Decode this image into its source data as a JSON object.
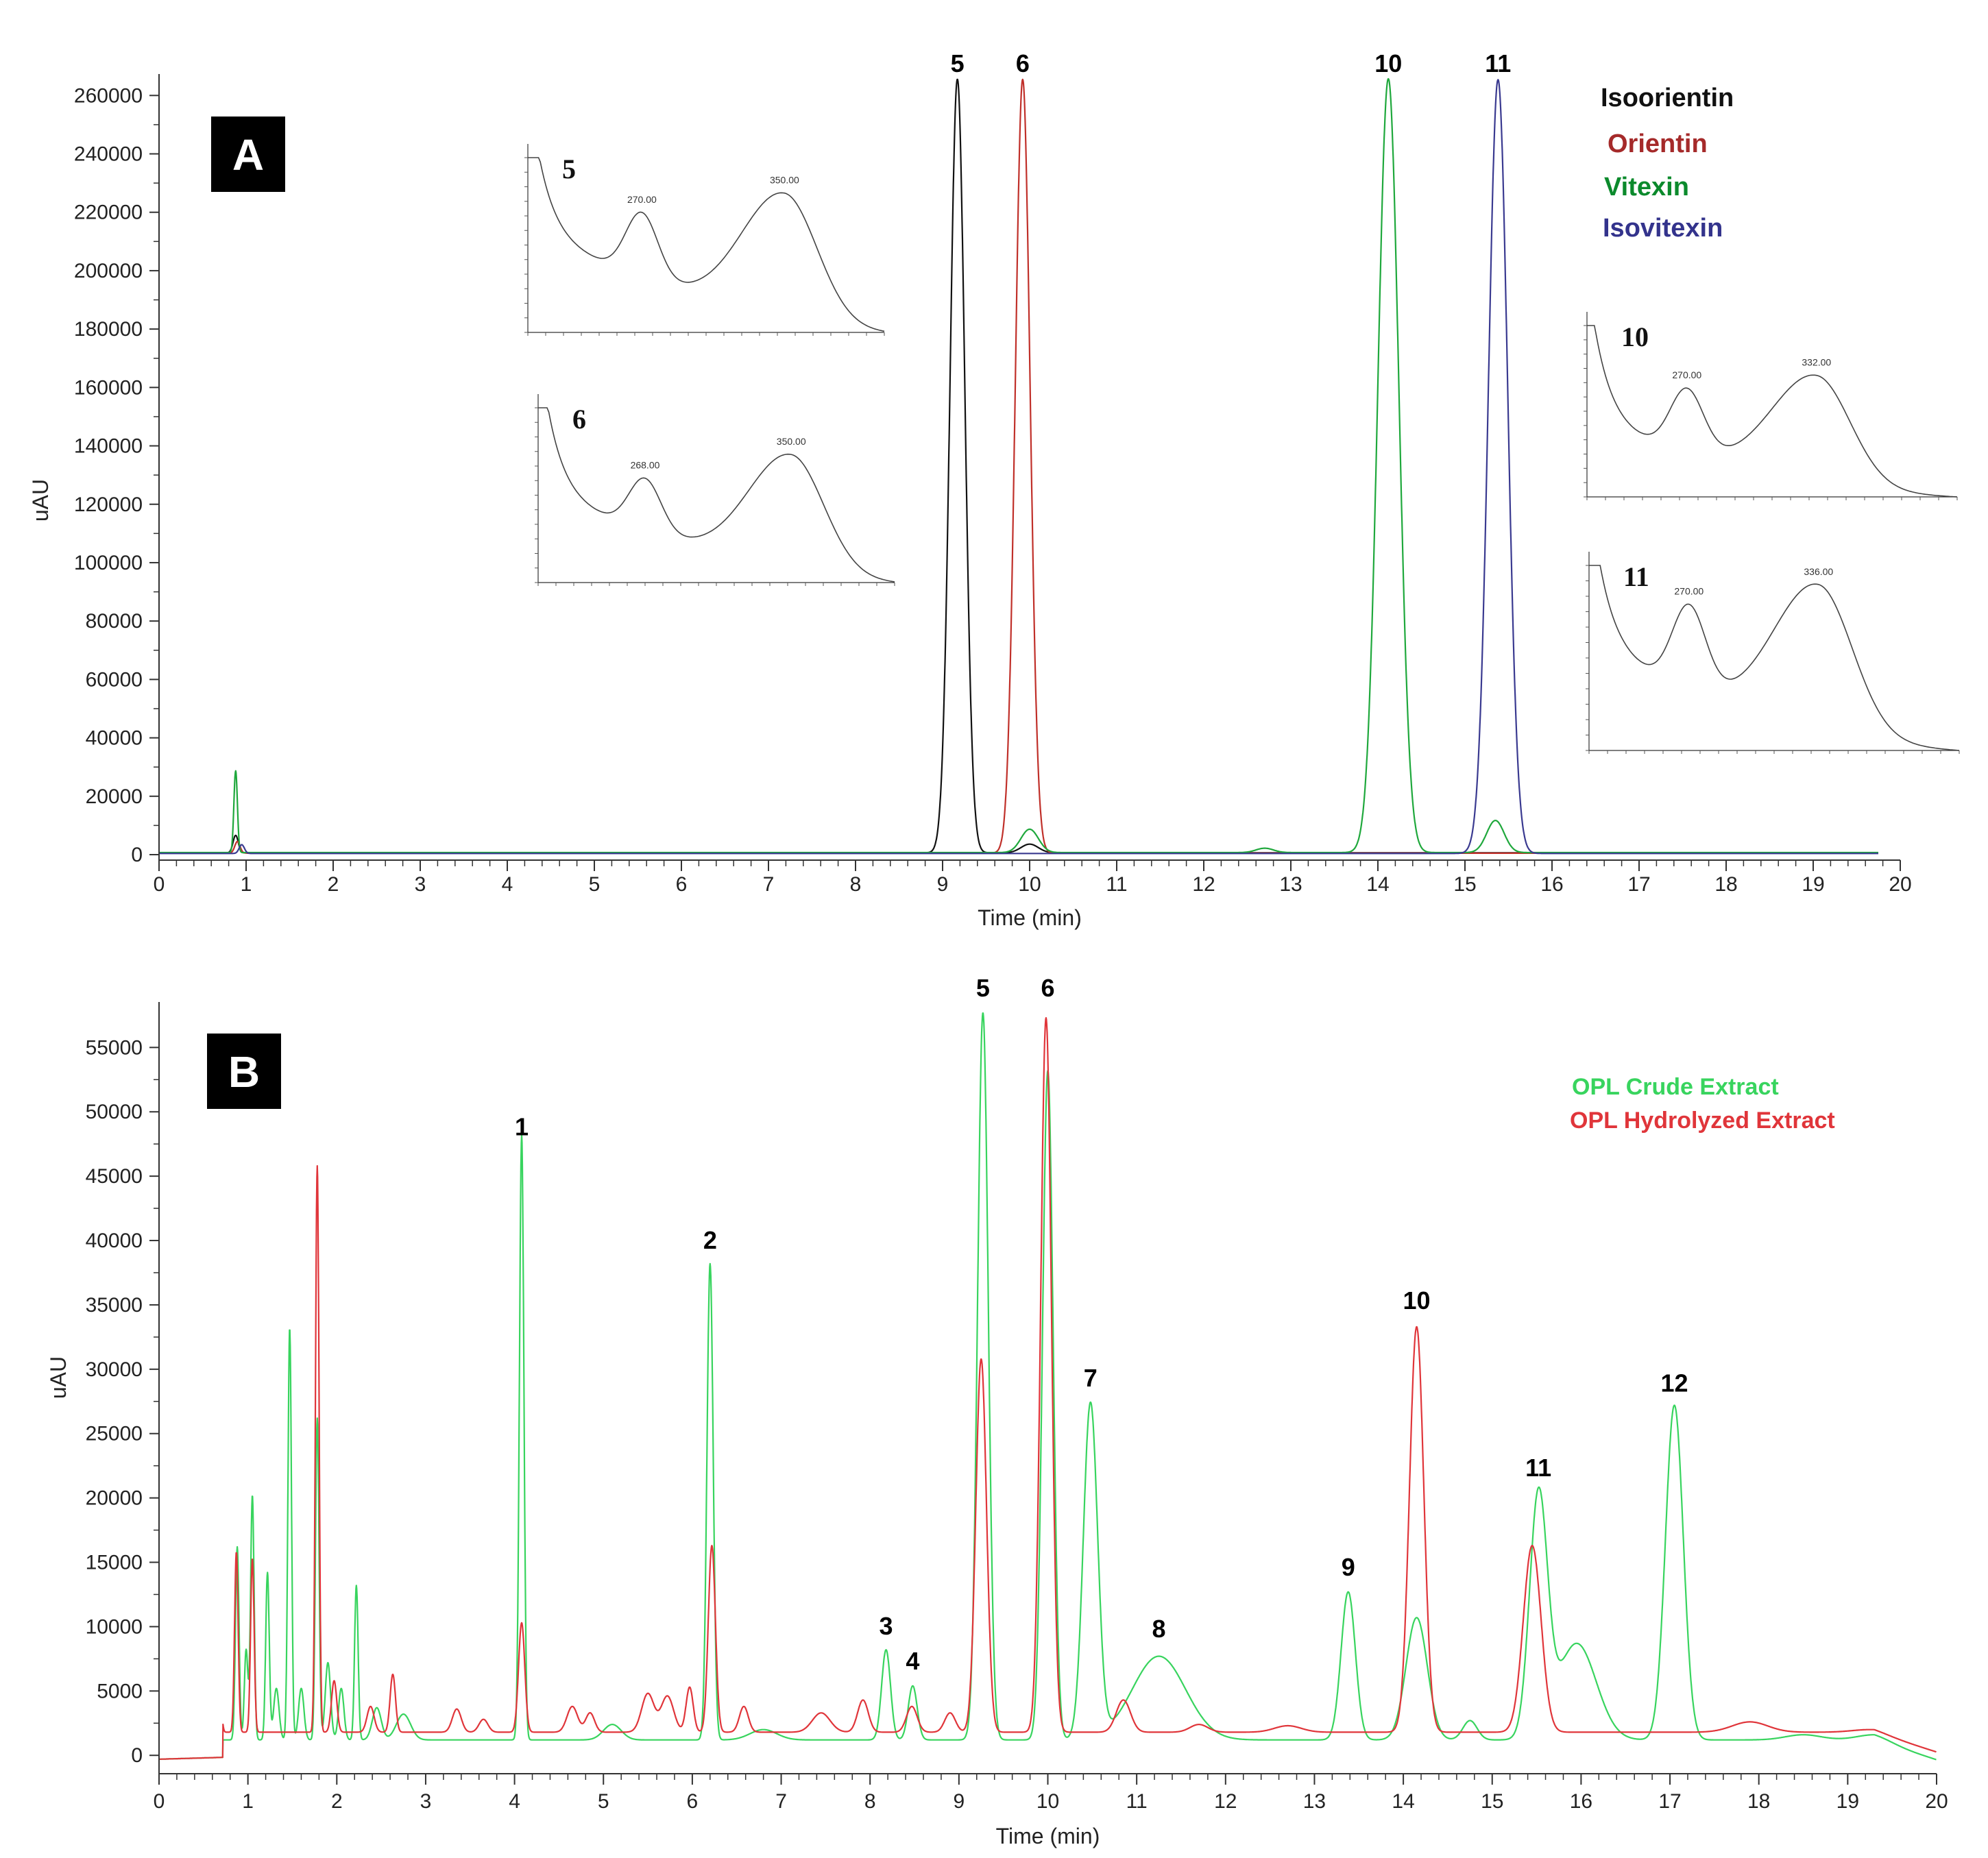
{
  "colors": {
    "isoorientin": "#111111",
    "orientin": "#c0302a",
    "vitexin": "#1fa83c",
    "isovitexin": "#3a3a90",
    "crude": "#38d45e",
    "hydrolyzed": "#e0353a"
  },
  "chart_data": [
    {
      "type": "line",
      "panel": "A",
      "panel_label": "A",
      "xlabel": "Time (min)",
      "ylabel": "uAU",
      "xlim": [
        0,
        20
      ],
      "ylim": [
        0,
        265000
      ],
      "x_ticks": [
        "0",
        "1",
        "2",
        "3",
        "4",
        "5",
        "6",
        "7",
        "8",
        "9",
        "10",
        "11",
        "12",
        "13",
        "14",
        "15",
        "16",
        "17",
        "18",
        "19",
        "20"
      ],
      "y_ticks": [
        "0",
        "20000",
        "40000",
        "60000",
        "80000",
        "100000",
        "120000",
        "140000",
        "160000",
        "180000",
        "200000",
        "220000",
        "240000",
        "260000"
      ],
      "legend_position": "top-right",
      "legend": [
        "Isoorientin",
        "Orientin",
        "Vitexin",
        "Isovitexin"
      ],
      "series": [
        {
          "name": "Isoorientin",
          "color_key": "isoorientin",
          "baseline": 600,
          "peaks": [
            [
              9.17,
              265000,
              0.085
            ],
            [
              0.88,
              6000,
              0.03
            ],
            [
              10.0,
              3000,
              0.1
            ]
          ]
        },
        {
          "name": "Orientin",
          "color_key": "orientin",
          "baseline": 500,
          "peaks": [
            [
              9.92,
              265000,
              0.085
            ],
            [
              0.9,
              4000,
              0.03
            ]
          ]
        },
        {
          "name": "Vitexin",
          "color_key": "vitexin",
          "baseline": 700,
          "peaks": [
            [
              14.12,
              265000,
              0.12
            ],
            [
              0.88,
              28000,
              0.02
            ],
            [
              10.0,
              8000,
              0.1
            ],
            [
              15.35,
              11000,
              0.1
            ],
            [
              12.7,
              1500,
              0.1
            ]
          ]
        },
        {
          "name": "Isovitexin",
          "color_key": "isovitexin",
          "baseline": 400,
          "peaks": [
            [
              15.38,
              265000,
              0.11
            ],
            [
              0.95,
              3000,
              0.03
            ]
          ]
        }
      ],
      "peak_labels": [
        {
          "label": "5",
          "x": 9.17
        },
        {
          "label": "6",
          "x": 9.92
        },
        {
          "label": "10",
          "x": 14.12
        },
        {
          "label": "11",
          "x": 15.38
        }
      ],
      "insets": [
        {
          "label": "5",
          "peak_labels": [
            "270.00",
            "350.00"
          ]
        },
        {
          "label": "6",
          "peak_labels": [
            "268.00",
            "350.00"
          ]
        },
        {
          "label": "10",
          "peak_labels": [
            "270.00",
            "332.00"
          ]
        },
        {
          "label": "11",
          "peak_labels": [
            "270.00",
            "336.00"
          ]
        }
      ]
    },
    {
      "type": "line",
      "panel": "B",
      "panel_label": "B",
      "xlabel": "Time (min)",
      "ylabel": "uAU",
      "xlim": [
        0,
        20
      ],
      "ylim": [
        -1000,
        58000
      ],
      "x_ticks": [
        "0",
        "1",
        "2",
        "3",
        "4",
        "5",
        "6",
        "7",
        "8",
        "9",
        "10",
        "11",
        "12",
        "13",
        "14",
        "15",
        "16",
        "17",
        "18",
        "19",
        "20"
      ],
      "y_ticks": [
        "0",
        "5000",
        "10000",
        "15000",
        "20000",
        "25000",
        "30000",
        "35000",
        "40000",
        "45000",
        "50000",
        "55000"
      ],
      "legend_position": "top-right",
      "legend": [
        "OPL Crude Extract",
        "OPL Hydrolyzed Extract"
      ],
      "series": [
        {
          "name": "OPL Crude Extract",
          "color_key": "crude",
          "baseline": 1200,
          "peaks": [
            [
              0.88,
              15000,
              0.02
            ],
            [
              0.98,
              7000,
              0.02
            ],
            [
              1.05,
              19000,
              0.02
            ],
            [
              1.22,
              13000,
              0.02
            ],
            [
              1.32,
              4000,
              0.03
            ],
            [
              1.47,
              32000,
              0.02
            ],
            [
              1.6,
              4000,
              0.03
            ],
            [
              1.78,
              25000,
              0.02
            ],
            [
              1.9,
              6000,
              0.03
            ],
            [
              2.05,
              4000,
              0.03
            ],
            [
              2.22,
              12000,
              0.02
            ],
            [
              2.45,
              2500,
              0.05
            ],
            [
              2.75,
              2000,
              0.08
            ],
            [
              4.08,
              47000,
              0.025
            ],
            [
              5.1,
              1200,
              0.1
            ],
            [
              6.2,
              37000,
              0.035
            ],
            [
              6.8,
              800,
              0.15
            ],
            [
              8.18,
              7000,
              0.05
            ],
            [
              8.48,
              4200,
              0.05
            ],
            [
              9.27,
              56500,
              0.06
            ],
            [
              10.0,
              52000,
              0.06
            ],
            [
              10.48,
              26000,
              0.08
            ],
            [
              11.25,
              6500,
              0.3
            ],
            [
              13.38,
              11500,
              0.08
            ],
            [
              14.15,
              9500,
              0.12
            ],
            [
              14.75,
              1500,
              0.08
            ],
            [
              15.52,
              18500,
              0.1
            ],
            [
              15.95,
              7500,
              0.22
            ],
            [
              17.05,
              26000,
              0.1
            ],
            [
              18.5,
              400,
              0.2
            ],
            [
              19.3,
              400,
              0.2
            ]
          ]
        },
        {
          "name": "OPL Hydrolyzed Extract",
          "color_key": "hydrolyzed",
          "baseline": 1800,
          "peaks": [
            [
              0.68,
              4500,
              0.02
            ],
            [
              0.87,
              14000,
              0.02
            ],
            [
              1.05,
              13500,
              0.02
            ],
            [
              1.78,
              44000,
              0.02
            ],
            [
              1.97,
              4000,
              0.03
            ],
            [
              2.38,
              2000,
              0.04
            ],
            [
              2.63,
              4500,
              0.03
            ],
            [
              3.35,
              1800,
              0.05
            ],
            [
              3.65,
              1000,
              0.05
            ],
            [
              4.08,
              8500,
              0.035
            ],
            [
              4.65,
              2000,
              0.06
            ],
            [
              4.85,
              1500,
              0.05
            ],
            [
              5.5,
              3000,
              0.07
            ],
            [
              5.72,
              2800,
              0.07
            ],
            [
              5.97,
              3500,
              0.04
            ],
            [
              6.22,
              14500,
              0.04
            ],
            [
              6.58,
              2000,
              0.05
            ],
            [
              7.45,
              1500,
              0.1
            ],
            [
              7.92,
              2500,
              0.06
            ],
            [
              8.47,
              2000,
              0.06
            ],
            [
              8.9,
              1500,
              0.06
            ],
            [
              9.25,
              29000,
              0.06
            ],
            [
              9.98,
              55500,
              0.06
            ],
            [
              10.85,
              2500,
              0.08
            ],
            [
              11.7,
              600,
              0.1
            ],
            [
              12.7,
              500,
              0.15
            ],
            [
              14.15,
              31500,
              0.08
            ],
            [
              15.45,
              14500,
              0.1
            ],
            [
              17.9,
              800,
              0.2
            ],
            [
              19.25,
              200,
              0.2
            ]
          ]
        }
      ],
      "peak_labels": [
        {
          "label": "1",
          "x": 4.08,
          "y": 47000
        },
        {
          "label": "2",
          "x": 6.2,
          "y": 38200
        },
        {
          "label": "3",
          "x": 8.18,
          "y": 8200
        },
        {
          "label": "4",
          "x": 8.48,
          "y": 5500
        },
        {
          "label": "5",
          "x": 9.27,
          "y": 57800
        },
        {
          "label": "6",
          "x": 10.0,
          "y": 57800
        },
        {
          "label": "7",
          "x": 10.48,
          "y": 27500
        },
        {
          "label": "8",
          "x": 11.25,
          "y": 8000
        },
        {
          "label": "9",
          "x": 13.38,
          "y": 12800
        },
        {
          "label": "10",
          "x": 14.15,
          "y": 33500
        },
        {
          "label": "11",
          "x": 15.52,
          "y": 20500
        },
        {
          "label": "12",
          "x": 17.05,
          "y": 27100
        }
      ]
    }
  ]
}
